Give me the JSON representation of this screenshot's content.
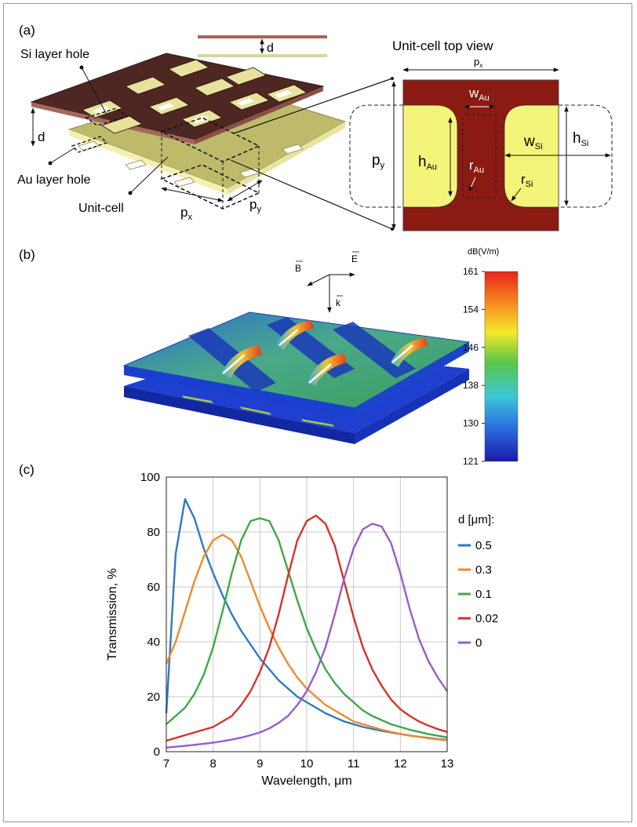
{
  "panel_a": {
    "panel_label": "(a)",
    "labels": {
      "si_hole": "Si layer hole",
      "au_hole": "Au layer hole",
      "unit_cell": "Unit-cell",
      "d_side": "d",
      "d_top": "d",
      "px_main": "p",
      "px_main_sub": "x",
      "py_main": "p",
      "py_main_sub": "y"
    },
    "top_view": {
      "title": "Unit-cell top view",
      "px": "p",
      "px_sub": "x",
      "py": "p",
      "py_sub": "y",
      "wau": "w",
      "wau_sub": "Au",
      "hau": "h",
      "hau_sub": "Au",
      "rau": "r",
      "rau_sub": "Au",
      "wsi": "w",
      "wsi_sub": "Si",
      "hsi": "h",
      "hsi_sub": "Si",
      "rsi": "r",
      "rsi_sub": "Si"
    },
    "colors": {
      "si": "#8a1a12",
      "au": "#f4f47a",
      "si_3d": "#4a2420",
      "au_3d": "#c9c77c"
    }
  },
  "panel_b": {
    "panel_label": "(b)",
    "vectors": {
      "b": "B",
      "e": "E",
      "k": "k"
    },
    "colorbar": {
      "unit": "dB(V/m)",
      "ticks": [
        "161",
        "154",
        "146",
        "138",
        "130",
        "121"
      ]
    }
  },
  "panel_c": {
    "panel_label": "(c)",
    "legend_title": "d [μm]:"
  },
  "chart_data": {
    "type": "line",
    "title": "",
    "xlabel": "Wavelength, μm",
    "ylabel": "Transmission, %",
    "xlim": [
      7,
      13
    ],
    "ylim": [
      0,
      100
    ],
    "xticks": [
      7,
      8,
      9,
      10,
      11,
      12,
      13
    ],
    "yticks": [
      0,
      20,
      40,
      60,
      80,
      100
    ],
    "grid": true,
    "legend_position": "right",
    "x": [
      7.0,
      7.2,
      7.4,
      7.6,
      7.8,
      8.0,
      8.2,
      8.4,
      8.6,
      8.8,
      9.0,
      9.2,
      9.4,
      9.6,
      9.8,
      10.0,
      10.2,
      10.4,
      10.6,
      10.8,
      11.0,
      11.2,
      11.4,
      11.6,
      11.8,
      12.0,
      12.2,
      12.4,
      12.6,
      12.8,
      13.0
    ],
    "series": [
      {
        "name": "0.5",
        "color": "#2f7ac0",
        "values": [
          14,
          72,
          92,
          85,
          74,
          65,
          57,
          50,
          44,
          39,
          34,
          30,
          26,
          23,
          20,
          18,
          16,
          14,
          12.5,
          11,
          10,
          9,
          8.3,
          7.6,
          7,
          6.4,
          5.9,
          5.4,
          5,
          4.6,
          4.3
        ]
      },
      {
        "name": "0.3",
        "color": "#ef8a2a",
        "values": [
          32,
          40,
          51,
          62,
          71,
          77,
          79,
          77,
          71,
          62,
          53,
          45,
          38,
          32,
          27,
          23,
          20,
          17,
          15,
          13,
          11,
          10,
          9,
          8,
          7.2,
          6.5,
          5.9,
          5.4,
          4.9,
          4.5,
          4.1
        ]
      },
      {
        "name": "0.1",
        "color": "#3ea846",
        "values": [
          10,
          13,
          16,
          21,
          28,
          38,
          51,
          65,
          77,
          84,
          85,
          84,
          77,
          66,
          55,
          45,
          37,
          30,
          25,
          21,
          18,
          15,
          13,
          11.5,
          10,
          9,
          8,
          7.2,
          6.4,
          5.8,
          5.2
        ]
      },
      {
        "name": "0.02",
        "color": "#d6322a",
        "values": [
          4,
          5,
          6,
          7,
          8,
          9,
          11,
          13,
          17,
          22,
          29,
          38,
          50,
          64,
          77,
          84,
          86,
          83,
          75,
          62,
          49,
          38,
          30,
          24,
          19,
          15.5,
          13,
          11,
          9.5,
          8.2,
          7.2
        ]
      },
      {
        "name": "0",
        "color": "#9a5cc8",
        "values": [
          1.5,
          1.8,
          2.1,
          2.5,
          2.9,
          3.3,
          3.8,
          4.4,
          5.1,
          6,
          7,
          8.5,
          10.5,
          13,
          17,
          22,
          29,
          38,
          50,
          63,
          74,
          81,
          83,
          82,
          76,
          65,
          52,
          41,
          33,
          27,
          22
        ]
      }
    ]
  }
}
